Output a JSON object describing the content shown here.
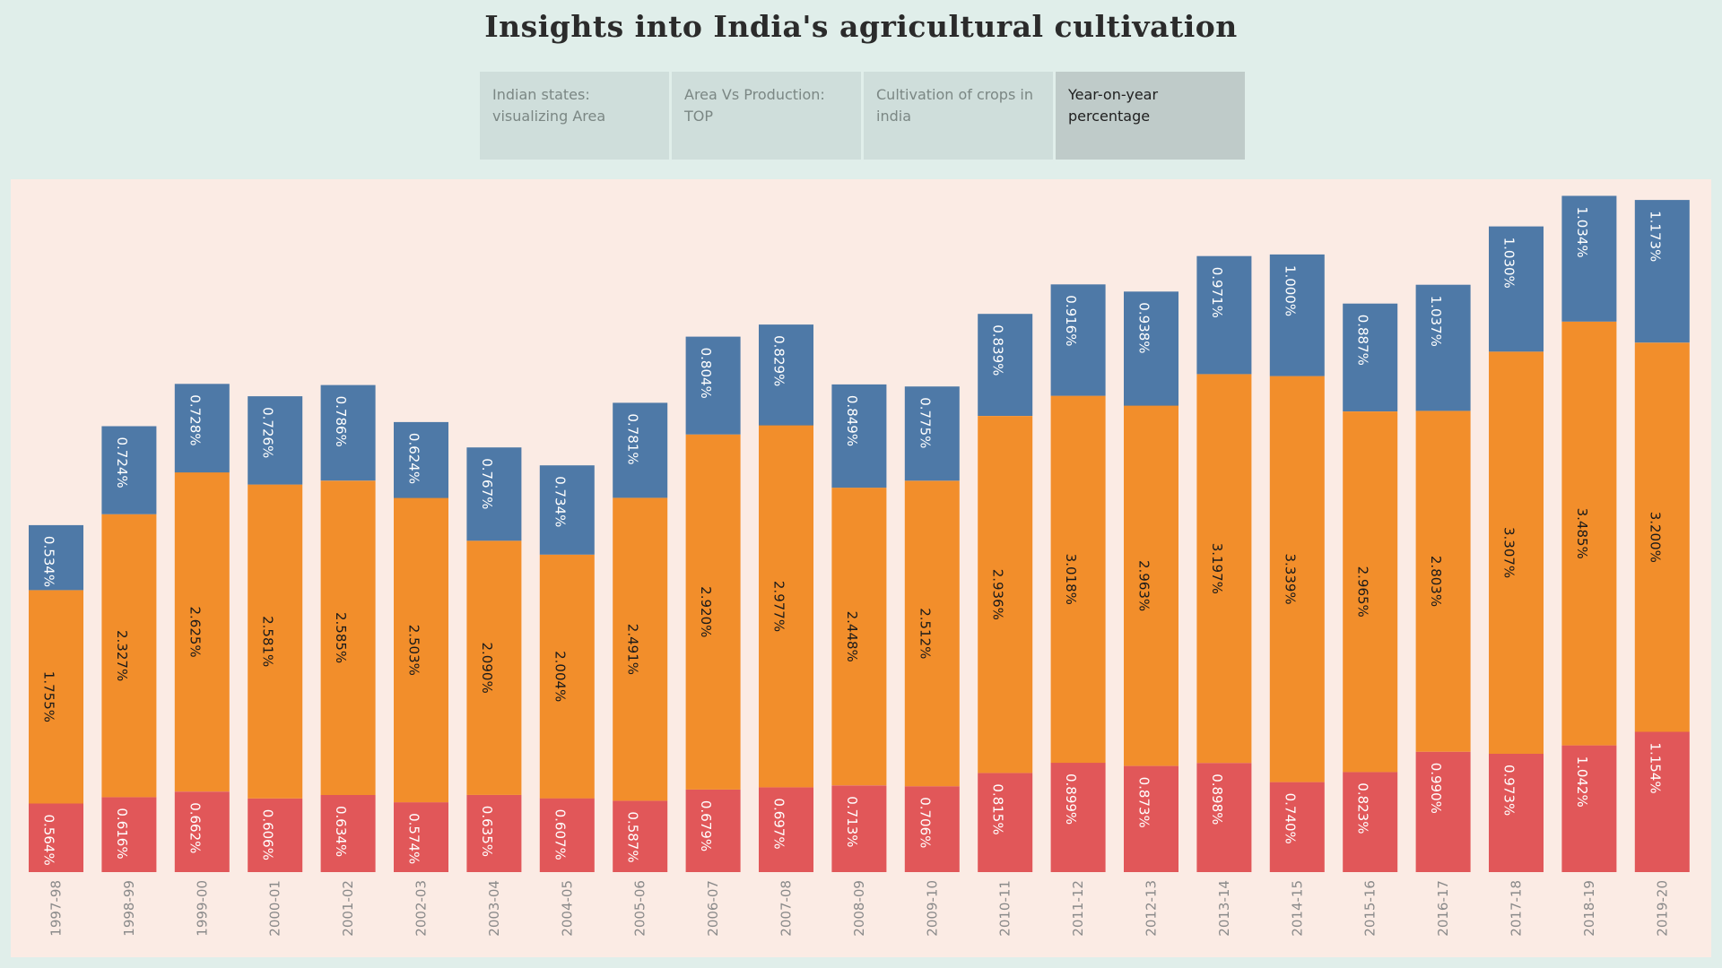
{
  "title": "Insights into India's agricultural cultivation",
  "tabs": [
    {
      "label": "Indian  states:\nvisualizing Area",
      "active": false
    },
    {
      "label": "Area  Vs     Production:\nTOP",
      "active": false
    },
    {
      "label": "Cultivation of crops in\nindia",
      "active": false
    },
    {
      "label": "Year-on-year\npercentage",
      "active": true
    }
  ],
  "colors": {
    "blue": "#4e79a7",
    "orange": "#f28e2b",
    "red": "#e15759",
    "background": "#e0eeea",
    "panel": "#fbebe4"
  },
  "chart_data": {
    "type": "bar",
    "stacked": true,
    "orientation": "vertical",
    "categories": [
      "1997-98",
      "1998-99",
      "1999-00",
      "2000-01",
      "2001-02",
      "2002-03",
      "2003-04",
      "2004-05",
      "2005-06",
      "2006-07",
      "2007-08",
      "2008-09",
      "2009-10",
      "2010-11",
      "2011-12",
      "2012-13",
      "2013-14",
      "2014-15",
      "2015-16",
      "2016-17",
      "2017-18",
      "2018-19",
      "2019-20"
    ],
    "series": [
      {
        "color": "#e15759",
        "values": [
          0.564,
          0.616,
          0.662,
          0.606,
          0.634,
          0.574,
          0.635,
          0.607,
          0.587,
          0.679,
          0.697,
          0.713,
          0.706,
          0.815,
          0.899,
          0.873,
          0.898,
          0.74,
          0.823,
          0.99,
          0.973,
          1.042,
          1.154
        ],
        "labels": [
          "0.564%",
          "0.616%",
          "0.662%",
          "0.606%",
          "0.634%",
          "0.574%",
          "0.635%",
          "0.607%",
          "0.587%",
          "0.679%",
          "0.697%",
          "0.713%",
          "0.706%",
          "0.815%",
          "0.899%",
          "0.873%",
          "0.898%",
          "0.740%",
          "0.823%",
          "0.990%",
          "0.973%",
          "1.042%",
          "1.154%"
        ]
      },
      {
        "color": "#f28e2b",
        "values": [
          1.755,
          2.327,
          2.625,
          2.581,
          2.585,
          2.503,
          2.09,
          2.004,
          2.491,
          2.92,
          2.977,
          2.448,
          2.512,
          2.936,
          3.018,
          2.963,
          3.197,
          3.339,
          2.965,
          2.803,
          3.307,
          3.485,
          3.2
        ],
        "labels": [
          "1.755%",
          "2.327%",
          "2.625%",
          "2.581%",
          "2.585%",
          "2.503%",
          "2.090%",
          "2.004%",
          "2.491%",
          "2.920%",
          "2.977%",
          "2.448%",
          "2.512%",
          "2.936%",
          "3.018%",
          "2.963%",
          "3.197%",
          "3.339%",
          "2.965%",
          "2.803%",
          "3.307%",
          "3.485%",
          "3.200%"
        ]
      },
      {
        "color": "#4e79a7",
        "values": [
          0.534,
          0.724,
          0.728,
          0.726,
          0.786,
          0.624,
          0.767,
          0.734,
          0.781,
          0.804,
          0.829,
          0.849,
          0.775,
          0.839,
          0.916,
          0.938,
          0.971,
          1.0,
          0.887,
          1.037,
          1.03,
          1.034,
          1.173
        ],
        "labels": [
          "0.534%",
          "0.724%",
          "0.728%",
          "0.726%",
          "0.786%",
          "0.624%",
          "0.767%",
          "0.734%",
          "0.781%",
          "0.804%",
          "0.829%",
          "0.849%",
          "0.775%",
          "0.839%",
          "0.916%",
          "0.938%",
          "0.971%",
          "1.000%",
          "0.887%",
          "1.037%",
          "1.030%",
          "1.034%",
          "1.173%"
        ]
      }
    ],
    "ylim": [
      0,
      5.55
    ],
    "grid": false,
    "legend": "none"
  }
}
